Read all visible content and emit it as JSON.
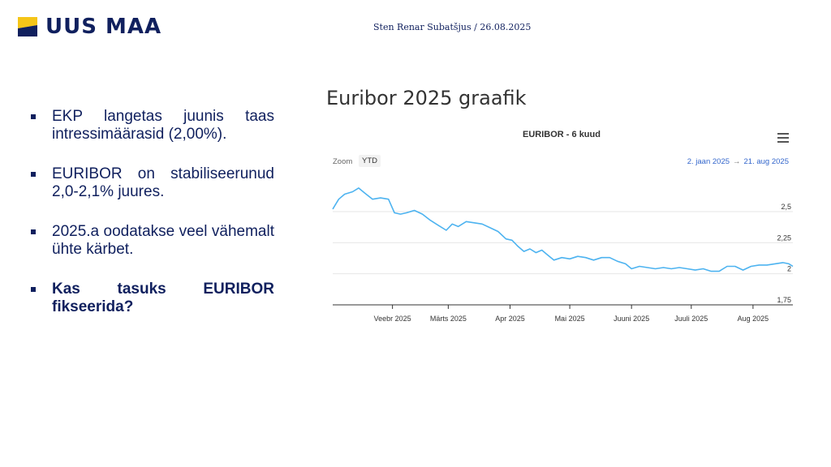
{
  "brand": {
    "name": "UUS MAA",
    "colors": {
      "navy": "#10205e",
      "yellow": "#f5c518"
    }
  },
  "header": {
    "author": "Sten Renar Subatšjus / 26.08.2025"
  },
  "bullets": [
    {
      "text": "EKP langetas juunis taas intressimäärasid (2,00%).",
      "bold": false
    },
    {
      "text": "EURIBOR on stabiliseerunud 2,0-2,1% juures.",
      "bold": false
    },
    {
      "text": "2025.a oodatakse veel vähemalt ühte kärbet.",
      "bold": false
    },
    {
      "text": "Kas tasuks EURIBOR fikseerida?",
      "bold": true
    }
  ],
  "section_title": "Euribor 2025 graafik",
  "chart_toolbar": {
    "zoom_label": "Zoom",
    "zoom_button": "YTD",
    "range_start": "2. jaan 2025",
    "range_arrow": "→",
    "range_end": "21. aug 2025",
    "menu_icon": "hamburger-icon"
  },
  "chart_data": {
    "type": "line",
    "title": "EURIBOR - 6 kuud",
    "xlabel": "",
    "ylabel": "",
    "x_range": [
      "2025-01-02",
      "2025-08-21"
    ],
    "ylim": [
      1.75,
      2.8
    ],
    "y_ticks": [
      {
        "value": 2.5,
        "label": "2,5"
      },
      {
        "value": 2.25,
        "label": "2,25"
      },
      {
        "value": 2.0,
        "label": "2"
      },
      {
        "value": 1.75,
        "label": "1,75"
      }
    ],
    "x_ticks": [
      {
        "date": "2025-02-01",
        "label": "Veebr 2025"
      },
      {
        "date": "2025-03-01",
        "label": "Märts 2025"
      },
      {
        "date": "2025-04-01",
        "label": "Apr 2025"
      },
      {
        "date": "2025-05-01",
        "label": "Mai 2025"
      },
      {
        "date": "2025-06-01",
        "label": "Juuni 2025"
      },
      {
        "date": "2025-07-01",
        "label": "Juuli 2025"
      },
      {
        "date": "2025-08-01",
        "label": "Aug 2025"
      }
    ],
    "grid": true,
    "color": "#4db3f0",
    "series": [
      {
        "values": [
          [
            "2025-01-02",
            2.52
          ],
          [
            "2025-01-05",
            2.6
          ],
          [
            "2025-01-08",
            2.64
          ],
          [
            "2025-01-12",
            2.66
          ],
          [
            "2025-01-15",
            2.69
          ],
          [
            "2025-01-18",
            2.65
          ],
          [
            "2025-01-22",
            2.6
          ],
          [
            "2025-01-26",
            2.61
          ],
          [
            "2025-01-30",
            2.6
          ],
          [
            "2025-02-02",
            2.49
          ],
          [
            "2025-02-05",
            2.48
          ],
          [
            "2025-02-08",
            2.49
          ],
          [
            "2025-02-12",
            2.51
          ],
          [
            "2025-02-16",
            2.48
          ],
          [
            "2025-02-20",
            2.43
          ],
          [
            "2025-02-24",
            2.39
          ],
          [
            "2025-02-28",
            2.35
          ],
          [
            "2025-03-03",
            2.4
          ],
          [
            "2025-03-06",
            2.38
          ],
          [
            "2025-03-10",
            2.42
          ],
          [
            "2025-03-14",
            2.41
          ],
          [
            "2025-03-18",
            2.4
          ],
          [
            "2025-03-22",
            2.37
          ],
          [
            "2025-03-26",
            2.34
          ],
          [
            "2025-03-30",
            2.28
          ],
          [
            "2025-04-02",
            2.27
          ],
          [
            "2025-04-05",
            2.22
          ],
          [
            "2025-04-08",
            2.18
          ],
          [
            "2025-04-11",
            2.2
          ],
          [
            "2025-04-14",
            2.17
          ],
          [
            "2025-04-17",
            2.19
          ],
          [
            "2025-04-20",
            2.15
          ],
          [
            "2025-04-23",
            2.11
          ],
          [
            "2025-04-27",
            2.13
          ],
          [
            "2025-05-01",
            2.12
          ],
          [
            "2025-05-05",
            2.14
          ],
          [
            "2025-05-09",
            2.13
          ],
          [
            "2025-05-13",
            2.11
          ],
          [
            "2025-05-17",
            2.13
          ],
          [
            "2025-05-21",
            2.13
          ],
          [
            "2025-05-25",
            2.1
          ],
          [
            "2025-05-29",
            2.08
          ],
          [
            "2025-06-01",
            2.04
          ],
          [
            "2025-06-05",
            2.06
          ],
          [
            "2025-06-09",
            2.05
          ],
          [
            "2025-06-13",
            2.04
          ],
          [
            "2025-06-17",
            2.05
          ],
          [
            "2025-06-21",
            2.04
          ],
          [
            "2025-06-25",
            2.05
          ],
          [
            "2025-06-29",
            2.04
          ],
          [
            "2025-07-03",
            2.03
          ],
          [
            "2025-07-07",
            2.04
          ],
          [
            "2025-07-11",
            2.02
          ],
          [
            "2025-07-15",
            2.02
          ],
          [
            "2025-07-19",
            2.06
          ],
          [
            "2025-07-23",
            2.06
          ],
          [
            "2025-07-27",
            2.03
          ],
          [
            "2025-07-31",
            2.06
          ],
          [
            "2025-08-04",
            2.07
          ],
          [
            "2025-08-08",
            2.07
          ],
          [
            "2025-08-12",
            2.08
          ],
          [
            "2025-08-16",
            2.09
          ],
          [
            "2025-08-19",
            2.08
          ],
          [
            "2025-08-21",
            2.06
          ]
        ]
      }
    ]
  }
}
